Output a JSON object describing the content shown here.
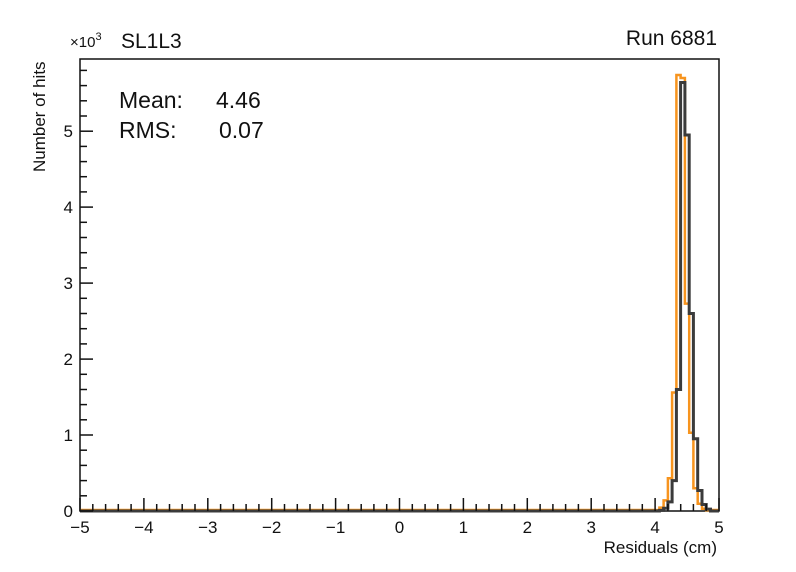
{
  "header": {
    "exponent_label": "×10",
    "exponent_power": "3",
    "title": "SL1L3",
    "run_label": "Run 6881"
  },
  "stats": {
    "mean_label": "Mean:",
    "mean_value": "4.46",
    "rms_label": "RMS:",
    "rms_value": "0.07"
  },
  "axes": {
    "x_title": "Residuals (cm)",
    "y_title": "Number of hits",
    "x_tick_values": [
      -5,
      -4,
      -3,
      -2,
      -1,
      0,
      1,
      2,
      3,
      4,
      5
    ],
    "x_tick_labels": [
      "−5",
      "−4",
      "−3",
      "−2",
      "−1",
      "0",
      "1",
      "2",
      "3",
      "4",
      "5"
    ],
    "y_tick_values": [
      0,
      1000,
      2000,
      3000,
      4000,
      5000
    ],
    "y_tick_labels": [
      "0",
      "1",
      "2",
      "3",
      "4",
      "5"
    ]
  },
  "chart_data": {
    "type": "bar",
    "subtype": "step-histogram-outline",
    "title": "SL1L3",
    "annotation": "Run 6881",
    "xlabel": "Residuals (cm)",
    "ylabel": "Number of hits",
    "xlim": [
      -5,
      5
    ],
    "ylim": [
      0,
      5950
    ],
    "y_axis_multiplier_label": "×10³",
    "x_minor_step": 0.2,
    "y_minor_step": 200,
    "grid": false,
    "legend": false,
    "stats": {
      "mean": 4.46,
      "rms": 0.07
    },
    "series": [
      {
        "name": "residuals-hist-orange",
        "color": "#f7941e",
        "line_width": 2.5,
        "baseline_lift": 1,
        "bin_width": 0.0667,
        "bins": [
          [
            4.0,
            12
          ],
          [
            4.067,
            45
          ],
          [
            4.133,
            140
          ],
          [
            4.2,
            430
          ],
          [
            4.267,
            1560
          ],
          [
            4.333,
            5740
          ],
          [
            4.4,
            5700
          ],
          [
            4.467,
            2730
          ],
          [
            4.533,
            1030
          ],
          [
            4.6,
            300
          ],
          [
            4.667,
            95
          ],
          [
            4.733,
            30
          ],
          [
            4.8,
            10
          ]
        ]
      },
      {
        "name": "residuals-hist-dark",
        "color": "#3b3b3b",
        "line_width": 3,
        "baseline_lift": 0,
        "bin_width": 0.0667,
        "bins": [
          [
            4.067,
            8
          ],
          [
            4.133,
            35
          ],
          [
            4.2,
            120
          ],
          [
            4.267,
            400
          ],
          [
            4.333,
            1600
          ],
          [
            4.4,
            5640
          ],
          [
            4.467,
            4950
          ],
          [
            4.533,
            2600
          ],
          [
            4.6,
            950
          ],
          [
            4.667,
            270
          ],
          [
            4.733,
            85
          ],
          [
            4.8,
            25
          ]
        ]
      }
    ]
  },
  "colors": {
    "frame": "#111111",
    "tick": "#111111",
    "text": "#111111",
    "hist_orange": "#f7941e",
    "hist_dark": "#3b3b3b",
    "background": "#ffffff"
  }
}
